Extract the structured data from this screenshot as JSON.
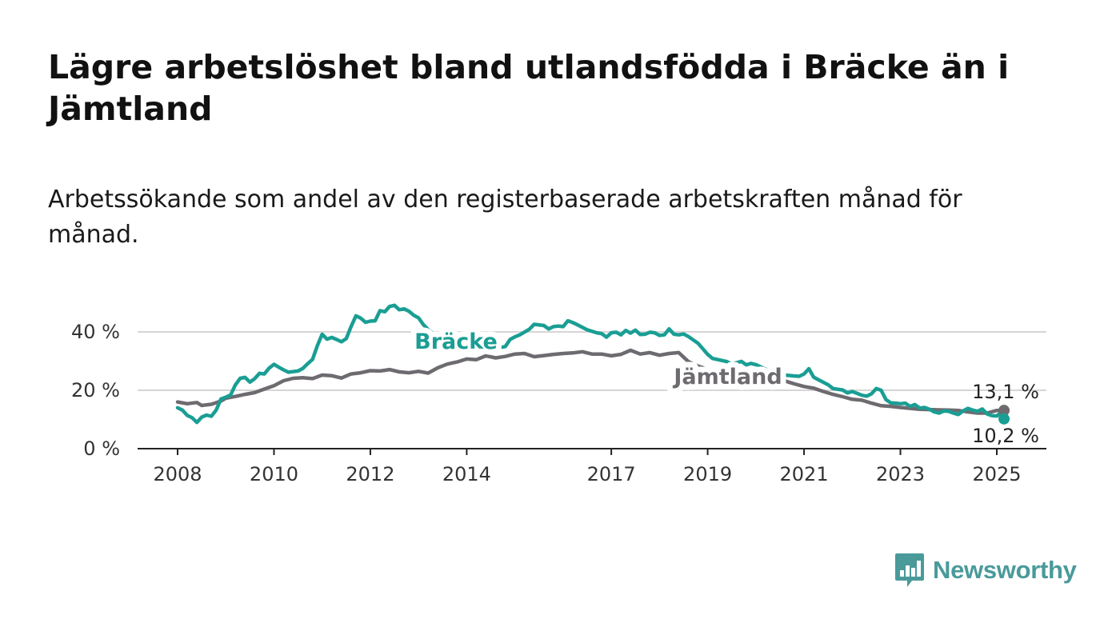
{
  "header": {
    "title": "Lägre arbetslöshet bland utlandsfödda i Bräcke än i Jämtland",
    "subtitle": "Arbetssökande som andel av den registerbaserade arbetskraften månad för månad."
  },
  "brand": {
    "name": "Newsworthy",
    "icon": "bar-chart-speech-bubble-icon",
    "color": "#4a9a9a"
  },
  "chart_data": {
    "type": "line",
    "title": "Lägre arbetslöshet bland utlandsfödda i Bräcke än i Jämtland",
    "subtitle": "Arbetssökande som andel av den registerbaserade arbetskraften månad för månad.",
    "xlabel": "",
    "ylabel": "",
    "xlim": [
      2007.7,
      2026.0
    ],
    "ylim": [
      0,
      50
    ],
    "grid": "horizontal",
    "x_ticks": [
      {
        "value": 2008,
        "label": "2008"
      },
      {
        "value": 2010,
        "label": "2010"
      },
      {
        "value": 2012,
        "label": "2012"
      },
      {
        "value": 2014,
        "label": "2014"
      },
      {
        "value": 2017,
        "label": "2017"
      },
      {
        "value": 2019,
        "label": "2019"
      },
      {
        "value": 2021,
        "label": "2021"
      },
      {
        "value": 2023,
        "label": "2023"
      },
      {
        "value": 2025,
        "label": "2025"
      }
    ],
    "y_ticks": [
      {
        "value": 0,
        "label": "0 %"
      },
      {
        "value": 20,
        "label": "20 %"
      },
      {
        "value": 40,
        "label": "40 %"
      }
    ],
    "series": [
      {
        "name": "Jämtland",
        "color": "#6e6b70",
        "end_label": "13,1 %",
        "points": [
          [
            2008.0,
            16.0
          ],
          [
            2008.2,
            15.4
          ],
          [
            2008.4,
            15.8
          ],
          [
            2008.5,
            14.8
          ],
          [
            2008.7,
            15.2
          ],
          [
            2008.9,
            16.3
          ],
          [
            2009.0,
            17.3
          ],
          [
            2009.2,
            17.9
          ],
          [
            2009.4,
            18.6
          ],
          [
            2009.6,
            19.2
          ],
          [
            2009.8,
            20.4
          ],
          [
            2010.0,
            21.6
          ],
          [
            2010.2,
            23.3
          ],
          [
            2010.4,
            24.1
          ],
          [
            2010.6,
            24.3
          ],
          [
            2010.8,
            24.0
          ],
          [
            2011.0,
            25.2
          ],
          [
            2011.2,
            25.0
          ],
          [
            2011.4,
            24.2
          ],
          [
            2011.6,
            25.6
          ],
          [
            2011.8,
            26.0
          ],
          [
            2012.0,
            26.7
          ],
          [
            2012.2,
            26.6
          ],
          [
            2012.4,
            27.1
          ],
          [
            2012.6,
            26.3
          ],
          [
            2012.8,
            26.0
          ],
          [
            2013.0,
            26.5
          ],
          [
            2013.2,
            25.9
          ],
          [
            2013.4,
            27.7
          ],
          [
            2013.6,
            29.0
          ],
          [
            2013.8,
            29.7
          ],
          [
            2014.0,
            30.7
          ],
          [
            2014.2,
            30.5
          ],
          [
            2014.4,
            31.8
          ],
          [
            2014.6,
            31.1
          ],
          [
            2014.8,
            31.6
          ],
          [
            2015.0,
            32.4
          ],
          [
            2015.2,
            32.6
          ],
          [
            2015.4,
            31.5
          ],
          [
            2015.6,
            31.9
          ],
          [
            2015.8,
            32.3
          ],
          [
            2016.0,
            32.6
          ],
          [
            2016.2,
            32.8
          ],
          [
            2016.4,
            33.2
          ],
          [
            2016.6,
            32.4
          ],
          [
            2016.8,
            32.4
          ],
          [
            2017.0,
            31.8
          ],
          [
            2017.2,
            32.3
          ],
          [
            2017.4,
            33.7
          ],
          [
            2017.6,
            32.4
          ],
          [
            2017.8,
            32.9
          ],
          [
            2018.0,
            32.0
          ],
          [
            2018.2,
            32.6
          ],
          [
            2018.4,
            32.9
          ],
          [
            2018.6,
            29.8
          ],
          [
            2018.8,
            28.3
          ],
          [
            2019.0,
            27.2
          ],
          [
            2019.2,
            26.4
          ],
          [
            2019.4,
            25.9
          ],
          [
            2019.6,
            25.3
          ],
          [
            2019.8,
            24.9
          ],
          [
            2020.0,
            24.4
          ],
          [
            2020.2,
            24.0
          ],
          [
            2020.4,
            24.0
          ],
          [
            2020.6,
            23.2
          ],
          [
            2020.8,
            22.2
          ],
          [
            2021.0,
            21.3
          ],
          [
            2021.2,
            20.7
          ],
          [
            2021.4,
            19.6
          ],
          [
            2021.6,
            18.6
          ],
          [
            2021.8,
            17.8
          ],
          [
            2022.0,
            16.9
          ],
          [
            2022.2,
            16.6
          ],
          [
            2022.4,
            15.6
          ],
          [
            2022.6,
            14.7
          ],
          [
            2022.8,
            14.5
          ],
          [
            2023.0,
            14.1
          ],
          [
            2023.2,
            13.8
          ],
          [
            2023.4,
            13.5
          ],
          [
            2023.6,
            13.4
          ],
          [
            2023.8,
            13.3
          ],
          [
            2024.0,
            13.2
          ],
          [
            2024.2,
            13.1
          ],
          [
            2024.4,
            12.6
          ],
          [
            2024.6,
            12.2
          ],
          [
            2024.8,
            12.2
          ],
          [
            2025.0,
            13.1
          ],
          [
            2025.15,
            13.1
          ]
        ]
      },
      {
        "name": "Bräcke",
        "color": "#1a9e94",
        "end_label": "10,2 %",
        "points": [
          [
            2008.0,
            14.0
          ],
          [
            2008.1,
            13.2
          ],
          [
            2008.2,
            11.4
          ],
          [
            2008.3,
            10.6
          ],
          [
            2008.4,
            9.0
          ],
          [
            2008.5,
            10.8
          ],
          [
            2008.6,
            11.5
          ],
          [
            2008.7,
            11.1
          ],
          [
            2008.8,
            13.2
          ],
          [
            2008.9,
            17.0
          ],
          [
            2009.0,
            17.6
          ],
          [
            2009.1,
            18.4
          ],
          [
            2009.2,
            21.9
          ],
          [
            2009.3,
            24.1
          ],
          [
            2009.4,
            24.4
          ],
          [
            2009.5,
            22.8
          ],
          [
            2009.6,
            24.0
          ],
          [
            2009.7,
            25.8
          ],
          [
            2009.8,
            25.6
          ],
          [
            2009.9,
            27.6
          ],
          [
            2010.0,
            28.9
          ],
          [
            2010.1,
            27.9
          ],
          [
            2010.2,
            27.0
          ],
          [
            2010.3,
            26.2
          ],
          [
            2010.5,
            26.6
          ],
          [
            2010.6,
            27.5
          ],
          [
            2010.7,
            29.1
          ],
          [
            2010.8,
            30.6
          ],
          [
            2010.9,
            35.3
          ],
          [
            2011.0,
            39.2
          ],
          [
            2011.1,
            37.5
          ],
          [
            2011.2,
            38.1
          ],
          [
            2011.3,
            37.4
          ],
          [
            2011.4,
            36.6
          ],
          [
            2011.5,
            37.7
          ],
          [
            2011.6,
            41.8
          ],
          [
            2011.7,
            45.5
          ],
          [
            2011.8,
            44.7
          ],
          [
            2011.9,
            43.3
          ],
          [
            2012.0,
            43.7
          ],
          [
            2012.1,
            43.8
          ],
          [
            2012.2,
            47.3
          ],
          [
            2012.3,
            46.9
          ],
          [
            2012.4,
            48.7
          ],
          [
            2012.5,
            49.1
          ],
          [
            2012.6,
            47.6
          ],
          [
            2012.7,
            47.9
          ],
          [
            2012.8,
            47.1
          ],
          [
            2012.9,
            45.7
          ],
          [
            2013.0,
            44.8
          ],
          [
            2013.1,
            42.5
          ],
          [
            2013.2,
            40.8
          ],
          [
            2013.4,
            38.2
          ],
          [
            2013.6,
            36.2
          ],
          [
            2013.8,
            34.7
          ],
          [
            2014.0,
            34.0
          ],
          [
            2014.2,
            33.2
          ],
          [
            2014.4,
            33.6
          ],
          [
            2014.6,
            34.4
          ],
          [
            2014.8,
            35.0
          ],
          [
            2014.9,
            37.4
          ],
          [
            2015.0,
            38.3
          ],
          [
            2015.1,
            39.0
          ],
          [
            2015.3,
            40.9
          ],
          [
            2015.4,
            42.6
          ],
          [
            2015.6,
            42.2
          ],
          [
            2015.7,
            41.0
          ],
          [
            2015.8,
            41.8
          ],
          [
            2015.9,
            42.0
          ],
          [
            2016.0,
            41.8
          ],
          [
            2016.1,
            43.8
          ],
          [
            2016.2,
            43.2
          ],
          [
            2016.3,
            42.4
          ],
          [
            2016.5,
            40.7
          ],
          [
            2016.7,
            39.7
          ],
          [
            2016.8,
            39.4
          ],
          [
            2016.9,
            38.2
          ],
          [
            2017.0,
            39.7
          ],
          [
            2017.1,
            39.9
          ],
          [
            2017.2,
            39.0
          ],
          [
            2017.3,
            40.5
          ],
          [
            2017.4,
            39.6
          ],
          [
            2017.5,
            40.6
          ],
          [
            2017.6,
            39.1
          ],
          [
            2017.7,
            39.2
          ],
          [
            2017.8,
            39.9
          ],
          [
            2017.9,
            39.7
          ],
          [
            2018.0,
            38.8
          ],
          [
            2018.1,
            39.0
          ],
          [
            2018.2,
            41.0
          ],
          [
            2018.3,
            39.2
          ],
          [
            2018.4,
            39.0
          ],
          [
            2018.5,
            39.3
          ],
          [
            2018.6,
            38.4
          ],
          [
            2018.8,
            36.1
          ],
          [
            2018.9,
            34.2
          ],
          [
            2019.0,
            32.3
          ],
          [
            2019.1,
            30.9
          ],
          [
            2019.3,
            30.2
          ],
          [
            2019.4,
            29.8
          ],
          [
            2019.5,
            29.0
          ],
          [
            2019.7,
            29.9
          ],
          [
            2019.8,
            28.7
          ],
          [
            2019.9,
            29.2
          ],
          [
            2020.0,
            28.8
          ],
          [
            2020.2,
            27.2
          ],
          [
            2020.4,
            26.3
          ],
          [
            2020.6,
            25.2
          ],
          [
            2020.8,
            24.9
          ],
          [
            2020.9,
            24.8
          ],
          [
            2021.0,
            25.6
          ],
          [
            2021.1,
            27.4
          ],
          [
            2021.2,
            24.5
          ],
          [
            2021.3,
            23.6
          ],
          [
            2021.5,
            21.9
          ],
          [
            2021.6,
            20.6
          ],
          [
            2021.8,
            20.1
          ],
          [
            2021.9,
            19.1
          ],
          [
            2022.0,
            19.6
          ],
          [
            2022.2,
            18.3
          ],
          [
            2022.3,
            18.0
          ],
          [
            2022.4,
            18.8
          ],
          [
            2022.5,
            20.6
          ],
          [
            2022.6,
            20.0
          ],
          [
            2022.7,
            16.8
          ],
          [
            2022.8,
            15.7
          ],
          [
            2022.9,
            15.6
          ],
          [
            2023.0,
            15.4
          ],
          [
            2023.1,
            15.6
          ],
          [
            2023.2,
            14.5
          ],
          [
            2023.3,
            15.1
          ],
          [
            2023.4,
            13.9
          ],
          [
            2023.5,
            14.1
          ],
          [
            2023.6,
            13.5
          ],
          [
            2023.7,
            12.6
          ],
          [
            2023.8,
            12.2
          ],
          [
            2023.9,
            12.9
          ],
          [
            2024.0,
            12.8
          ],
          [
            2024.1,
            12.2
          ],
          [
            2024.2,
            11.7
          ],
          [
            2024.3,
            12.9
          ],
          [
            2024.4,
            13.8
          ],
          [
            2024.5,
            13.2
          ],
          [
            2024.6,
            12.8
          ],
          [
            2024.7,
            13.6
          ],
          [
            2024.8,
            11.9
          ],
          [
            2024.9,
            11.3
          ],
          [
            2025.0,
            11.2
          ],
          [
            2025.05,
            11.9
          ],
          [
            2025.1,
            11.1
          ],
          [
            2025.15,
            10.2
          ]
        ]
      }
    ]
  }
}
